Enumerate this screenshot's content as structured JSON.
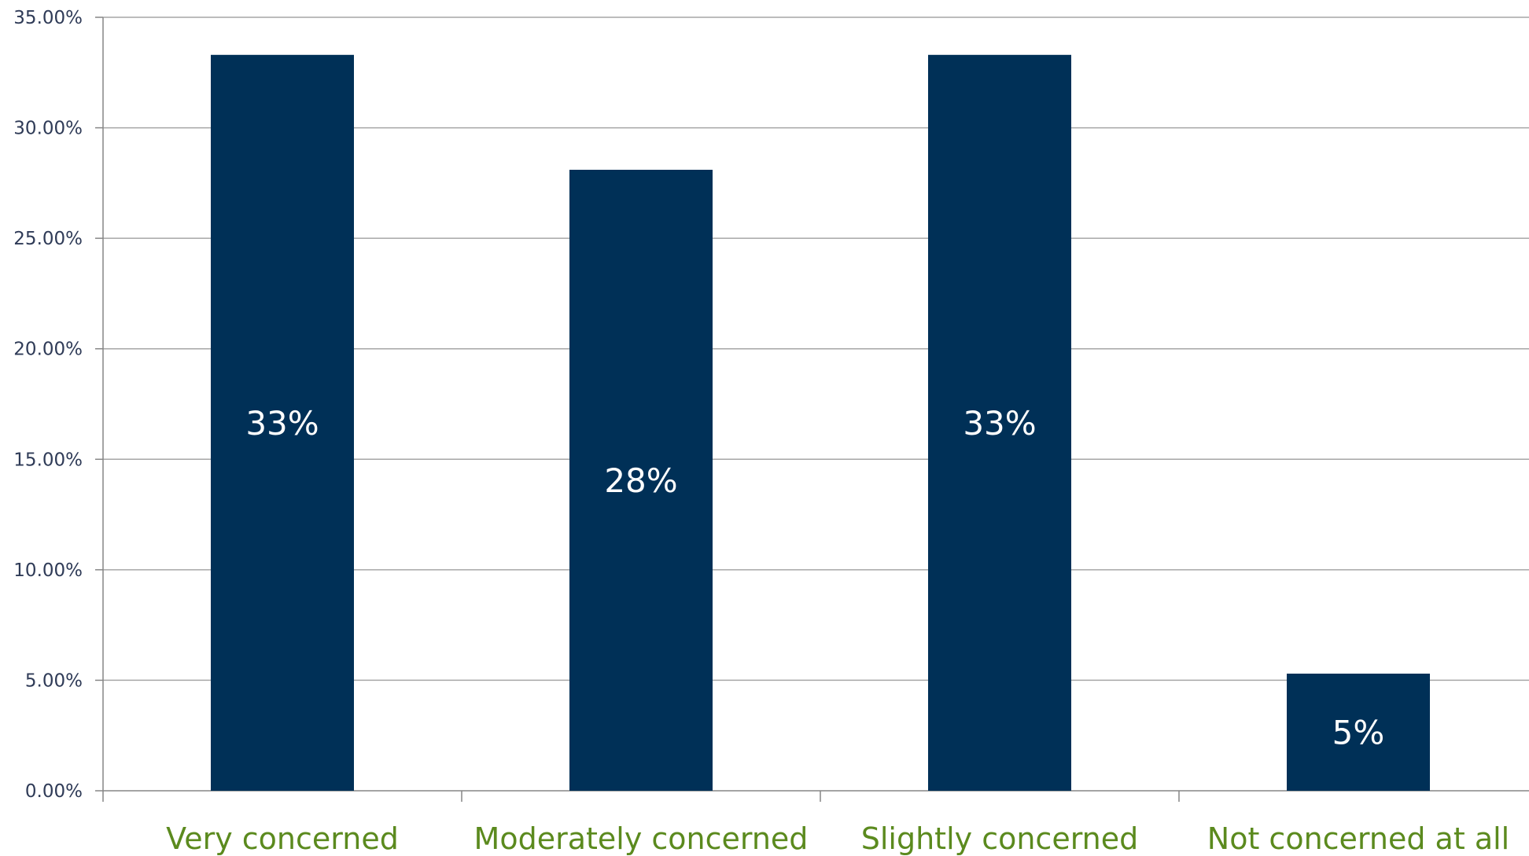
{
  "chart_data": {
    "type": "bar",
    "categories": [
      "Very concerned",
      "Moderately concerned",
      "Slightly concerned",
      "Not concerned at all"
    ],
    "values": [
      33.3,
      28.1,
      33.3,
      5.3
    ],
    "data_labels": [
      "33%",
      "28%",
      "33%",
      "5%"
    ],
    "ylim": [
      0,
      35
    ],
    "yticks": [
      0,
      5,
      10,
      15,
      20,
      25,
      30,
      35
    ],
    "ytick_labels": [
      "0.00%",
      "5.00%",
      "10.00%",
      "15.00%",
      "20.00%",
      "25.00%",
      "30.00%",
      "35.00%"
    ],
    "grid": true,
    "legend": "none",
    "colors": {
      "bar": "#003057",
      "category_label": "#5b8a1e",
      "gridline": "#a6a6a6",
      "axis": "#868686",
      "tick_label": "#2f3b57",
      "data_label": "#ffffff"
    }
  }
}
